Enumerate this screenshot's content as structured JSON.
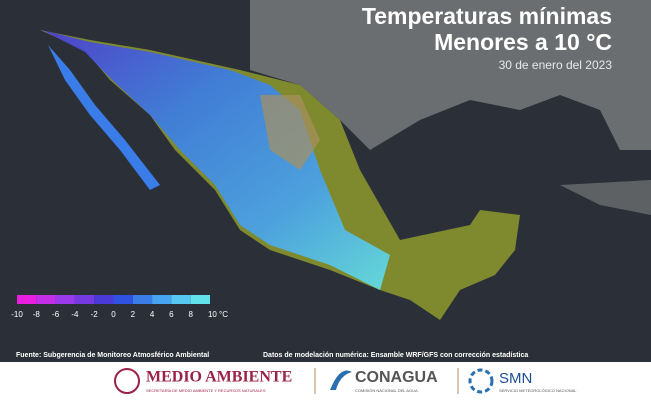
{
  "header": {
    "title": "Temperaturas mínimas",
    "subtitle": "Menores a 10 °C",
    "date": "30 de enero del 2023"
  },
  "legend": {
    "labels": [
      "-10",
      "-8",
      "-6",
      "-4",
      "-2",
      "0",
      "2",
      "4",
      "6",
      "8",
      "10 °C"
    ],
    "colors": [
      "#e81ee0",
      "#c42ee8",
      "#9a3aea",
      "#763ae2",
      "#4a3ad8",
      "#2f52e2",
      "#3a7ce8",
      "#47a4f0",
      "#56c8f2",
      "#62e2ea"
    ]
  },
  "credits": {
    "source": "Fuente: Subgerencia de Monitoreo Atmosférico Ambiental",
    "model": "Datos de modelación numérica: Ensamble WRF/GFS con corrección estadística"
  },
  "logos": {
    "semarnat": "MEDIO AMBIENTE",
    "semarnat_sub": "SECRETARÍA DE MEDIO AMBIENTE Y RECURSOS NATURALES",
    "conagua": "CONAGUA",
    "conagua_sub": "COMISIÓN NACIONAL DEL AGUA",
    "smn": "SMN",
    "smn_sub": "SERVICIO METEOROLÓGICO NACIONAL"
  }
}
